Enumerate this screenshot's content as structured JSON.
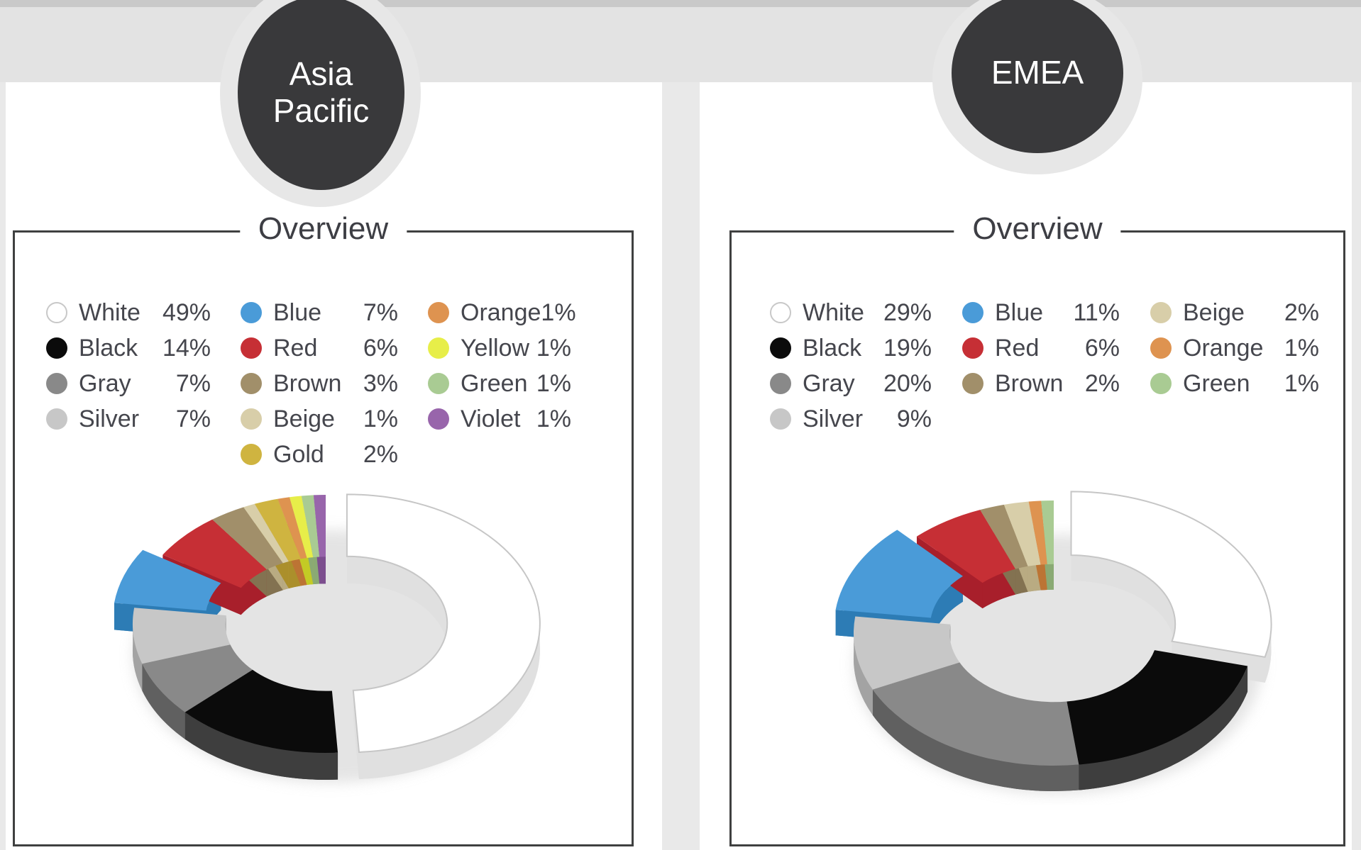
{
  "page": {
    "colors": {
      "background": "#e9e9e9",
      "top_strip": "#c9c9c9",
      "band": "#e3e3e3",
      "card": "#ffffff",
      "box_border": "#3f4040",
      "title_text": "#3d3e44",
      "legend_text": "#45464d",
      "badge_fill": "#39393b",
      "badge_halo": "#e7e7e7",
      "badge_text": "#ffffff"
    }
  },
  "palette": {
    "White": {
      "top": "#ffffff",
      "side": "#e0e0e0",
      "edge": "#c6c6c6",
      "dot_border": "#c8c8c8"
    },
    "Black": {
      "top": "#0b0b0b",
      "side": "#3e3e3e"
    },
    "Gray": {
      "top": "#898989",
      "side": "#606060"
    },
    "Silver": {
      "top": "#c7c7c7",
      "side": "#a3a3a3"
    },
    "Blue": {
      "top": "#4a9bd8",
      "side": "#2d7cb5"
    },
    "Red": {
      "top": "#c62f35",
      "side": "#a81f2b"
    },
    "Brown": {
      "top": "#a18f6a",
      "side": "#837251"
    },
    "Beige": {
      "top": "#d8cea9",
      "side": "#b9ab82"
    },
    "Gold": {
      "top": "#cfb440",
      "side": "#ab8f2b"
    },
    "Orange": {
      "top": "#de9350",
      "side": "#bc7434"
    },
    "Yellow": {
      "top": "#e7ee49",
      "side": "#c3cb25"
    },
    "Green": {
      "top": "#a9cb93",
      "side": "#8aaa74"
    },
    "Violet": {
      "top": "#9865ab",
      "side": "#7c4e8e"
    }
  },
  "regions": [
    {
      "id": "asia-pacific",
      "badge_lines": [
        "Asia",
        "Pacific"
      ],
      "section_title": "Overview",
      "legend_columns": [
        [
          {
            "label": "White",
            "value": "49%"
          },
          {
            "label": "Black",
            "value": "14%"
          },
          {
            "label": "Gray",
            "value": "7%"
          },
          {
            "label": "Silver",
            "value": "7%"
          }
        ],
        [
          {
            "label": "Blue",
            "value": "7%"
          },
          {
            "label": "Red",
            "value": "6%"
          },
          {
            "label": "Brown",
            "value": "3%"
          },
          {
            "label": "Beige",
            "value": "1%"
          },
          {
            "label": "Gold",
            "value": "2%"
          }
        ],
        [
          {
            "label": "Orange",
            "value": "1%"
          },
          {
            "label": "Yellow",
            "value": "1%"
          },
          {
            "label": "Green",
            "value": "1%"
          },
          {
            "label": "Violet",
            "value": "1%"
          }
        ]
      ]
    },
    {
      "id": "emea",
      "badge_lines": [
        "EMEA"
      ],
      "section_title": "Overview",
      "legend_columns": [
        [
          {
            "label": "White",
            "value": "29%"
          },
          {
            "label": "Black",
            "value": "19%"
          },
          {
            "label": "Gray",
            "value": "20%"
          },
          {
            "label": "Silver",
            "value": "9%"
          }
        ],
        [
          {
            "label": "Blue",
            "value": "11%"
          },
          {
            "label": "Red",
            "value": "6%"
          },
          {
            "label": "Brown",
            "value": "2%"
          }
        ],
        [
          {
            "label": "Beige",
            "value": "2%"
          },
          {
            "label": "Orange",
            "value": "1%"
          },
          {
            "label": "Green",
            "value": "1%"
          }
        ]
      ]
    }
  ],
  "chart_data": [
    {
      "id": "asia-pacific",
      "type": "pie",
      "subtype": "3d-exploded-donut",
      "title": "Overview",
      "region": "Asia Pacific",
      "unit": "percent",
      "labels": [
        "White",
        "Black",
        "Gray",
        "Silver",
        "Blue",
        "Red",
        "Brown",
        "Beige",
        "Gold",
        "Orange",
        "Yellow",
        "Green",
        "Violet"
      ],
      "values": [
        49,
        14,
        7,
        7,
        7,
        6,
        3,
        1,
        2,
        1,
        1,
        1,
        1
      ],
      "colors": [
        "#ffffff",
        "#0b0b0b",
        "#898989",
        "#c7c7c7",
        "#4a9bd8",
        "#c62f35",
        "#a18f6a",
        "#d8cea9",
        "#cfb440",
        "#de9350",
        "#e7ee49",
        "#a9cb93",
        "#9865ab"
      ],
      "exploded": [
        "White",
        "Blue"
      ],
      "start_angle_deg": 0,
      "direction": "clockwise",
      "legend_position": "top"
    },
    {
      "id": "emea",
      "type": "pie",
      "subtype": "3d-exploded-donut",
      "title": "Overview",
      "region": "EMEA",
      "unit": "percent",
      "labels": [
        "White",
        "Black",
        "Gray",
        "Silver",
        "Blue",
        "Red",
        "Brown",
        "Beige",
        "Orange",
        "Green"
      ],
      "values": [
        29,
        19,
        20,
        9,
        11,
        6,
        2,
        2,
        1,
        1
      ],
      "colors": [
        "#ffffff",
        "#0b0b0b",
        "#898989",
        "#c7c7c7",
        "#4a9bd8",
        "#c62f35",
        "#a18f6a",
        "#d8cea9",
        "#de9350",
        "#a9cb93"
      ],
      "exploded": [
        "White",
        "Blue"
      ],
      "start_angle_deg": 0,
      "direction": "clockwise",
      "legend_position": "top"
    }
  ]
}
